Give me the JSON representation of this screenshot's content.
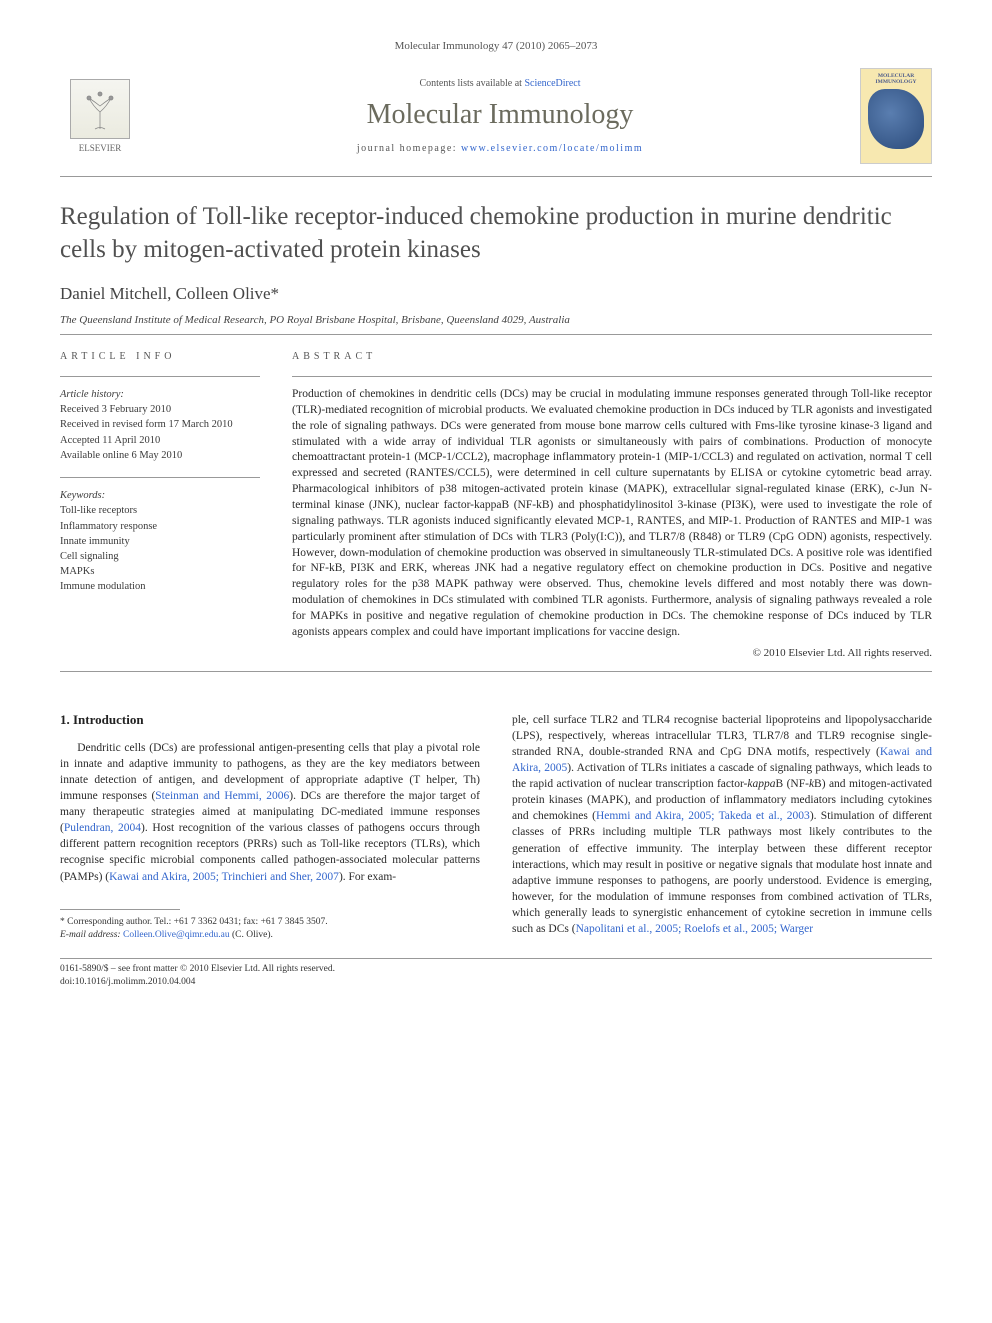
{
  "header": {
    "journal_ref": "Molecular Immunology 47 (2010) 2065–2073",
    "contents_prefix": "Contents lists available at ",
    "contents_link": "ScienceDirect",
    "journal_name": "Molecular Immunology",
    "homepage_prefix": "journal homepage: ",
    "homepage_link": "www.elsevier.com/locate/molimm",
    "publisher_name": "ELSEVIER",
    "cover_title": "MOLECULAR IMMUNOLOGY"
  },
  "article": {
    "title": "Regulation of Toll-like receptor-induced chemokine production in murine dendritic cells by mitogen-activated protein kinases",
    "authors": "Daniel Mitchell, Colleen Olive*",
    "affiliation": "The Queensland Institute of Medical Research, PO Royal Brisbane Hospital, Brisbane, Queensland 4029, Australia"
  },
  "info": {
    "label": "article info",
    "history_label": "Article history:",
    "history": [
      "Received 3 February 2010",
      "Received in revised form 17 March 2010",
      "Accepted 11 April 2010",
      "Available online 6 May 2010"
    ],
    "keywords_label": "Keywords:",
    "keywords": [
      "Toll-like receptors",
      "Inflammatory response",
      "Innate immunity",
      "Cell signaling",
      "MAPKs",
      "Immune modulation"
    ]
  },
  "abstract": {
    "label": "abstract",
    "text": "Production of chemokines in dendritic cells (DCs) may be crucial in modulating immune responses generated through Toll-like receptor (TLR)-mediated recognition of microbial products. We evaluated chemokine production in DCs induced by TLR agonists and investigated the role of signaling pathways. DCs were generated from mouse bone marrow cells cultured with Fms-like tyrosine kinase-3 ligand and stimulated with a wide array of individual TLR agonists or simultaneously with pairs of combinations. Production of monocyte chemoattractant protein-1 (MCP-1/CCL2), macrophage inflammatory protein-1 (MIP-1/CCL3) and regulated on activation, normal T cell expressed and secreted (RANTES/CCL5), were determined in cell culture supernatants by ELISA or cytokine cytometric bead array. Pharmacological inhibitors of p38 mitogen-activated protein kinase (MAPK), extracellular signal-regulated kinase (ERK), c-Jun N-terminal kinase (JNK), nuclear factor-kappaB (NF-kB) and phosphatidylinositol 3-kinase (PI3K), were used to investigate the role of signaling pathways. TLR agonists induced significantly elevated MCP-1, RANTES, and MIP-1. Production of RANTES and MIP-1 was particularly prominent after stimulation of DCs with TLR3 (Poly(I:C)), and TLR7/8 (R848) or TLR9 (CpG ODN) agonists, respectively. However, down-modulation of chemokine production was observed in simultaneously TLR-stimulated DCs. A positive role was identified for NF-kB, PI3K and ERK, whereas JNK had a negative regulatory effect on chemokine production in DCs. Positive and negative regulatory roles for the p38 MAPK pathway were observed. Thus, chemokine levels differed and most notably there was down-modulation of chemokines in DCs stimulated with combined TLR agonists. Furthermore, analysis of signaling pathways revealed a role for MAPKs in positive and negative regulation of chemokine production in DCs. The chemokine response of DCs induced by TLR agonists appears complex and could have important implications for vaccine design.",
    "copyright": "© 2010 Elsevier Ltd. All rights reserved."
  },
  "body": {
    "section_heading": "1. Introduction",
    "col1_html": "Dendritic cells (DCs) are professional antigen-presenting cells that play a pivotal role in innate and adaptive immunity to pathogens, as they are the key mediators between innate detection of antigen, and development of appropriate adaptive (T helper, Th) immune responses (<span class='cite'>Steinman and Hemmi, 2006</span>). DCs are therefore the major target of many therapeutic strategies aimed at manipulating DC-mediated immune responses (<span class='cite'>Pulendran, 2004</span>). Host recognition of the various classes of pathogens occurs through different pattern recognition receptors (PRRs) such as Toll-like receptors (TLRs), which recognise specific microbial components called pathogen-associated molecular patterns (PAMPs) (<span class='cite'>Kawai and Akira, 2005; Trinchieri and Sher, 2007</span>). For exam-",
    "col2_html": "ple, cell surface TLR2 and TLR4 recognise bacterial lipoproteins and lipopolysaccharide (LPS), respectively, whereas intracellular TLR3, TLR7/8 and TLR9 recognise single-stranded RNA, double-stranded RNA and CpG DNA motifs, respectively (<span class='cite'>Kawai and Akira, 2005</span>). Activation of TLRs initiates a cascade of signaling pathways, which leads to the rapid activation of nuclear transcription factor-<i>kappa</i>B (NF-<i>k</i>B) and mitogen-activated protein kinases (MAPK), and production of inflammatory mediators including cytokines and chemokines (<span class='cite'>Hemmi and Akira, 2005; Takeda et al., 2003</span>). Stimulation of different classes of PRRs including multiple TLR pathways most likely contributes to the generation of effective immunity. The interplay between these different receptor interactions, which may result in positive or negative signals that modulate host innate and adaptive immune responses to pathogens, are poorly understood. Evidence is emerging, however, for the modulation of immune responses from combined activation of TLRs, which generally leads to synergistic enhancement of cytokine secretion in immune cells such as DCs (<span class='cite'>Napolitani et al., 2005; Roelofs et al., 2005; Warger</span>"
  },
  "footnote": {
    "corresponding": "* Corresponding author. Tel.: +61 7 3362 0431; fax: +61 7 3845 3507.",
    "email_label": "E-mail address: ",
    "email": "Colleen.Olive@qimr.edu.au",
    "email_suffix": " (C. Olive)."
  },
  "footer": {
    "line1": "0161-5890/$ – see front matter © 2010 Elsevier Ltd. All rights reserved.",
    "line2": "doi:10.1016/j.molimm.2010.04.004"
  }
}
